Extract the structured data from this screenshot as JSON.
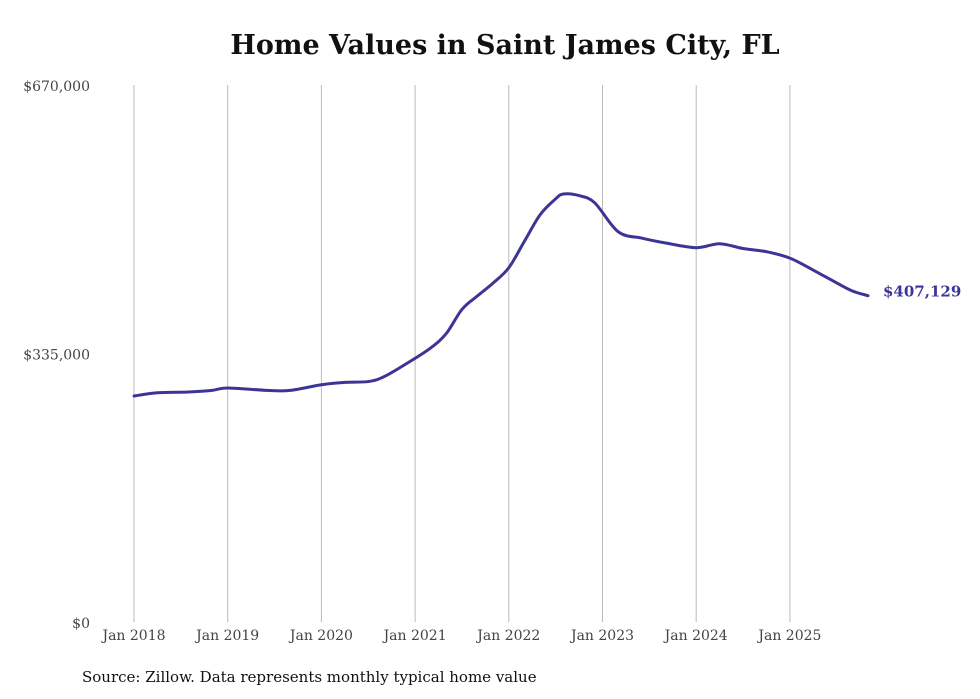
{
  "chart_data": {
    "type": "line",
    "title": "Home Values in Saint James City, FL",
    "source": "Source: Zillow. Data represents monthly typical home value",
    "xlabel": "",
    "ylabel": "",
    "ylim": [
      0,
      670000
    ],
    "y_ticks": [
      0,
      335000,
      670000
    ],
    "y_tick_labels": [
      "$0",
      "$335,000",
      "$670,000"
    ],
    "x_ticks": [
      2018,
      2019,
      2020,
      2021,
      2022,
      2023,
      2024,
      2025
    ],
    "x_tick_labels": [
      "Jan 2018",
      "Jan 2019",
      "Jan 2020",
      "Jan 2021",
      "Jan 2022",
      "Jan 2023",
      "Jan 2024",
      "Jan 2025"
    ],
    "grid": "vertical",
    "line_color": "#3d3595",
    "end_label": "$407,129",
    "series": [
      {
        "name": "Typical home value",
        "x": [
          "2018-01",
          "2018-04",
          "2018-08",
          "2018-11",
          "2019-01",
          "2019-06",
          "2019-09",
          "2020-01",
          "2020-04",
          "2020-07",
          "2020-09",
          "2020-12",
          "2021-03",
          "2021-05",
          "2021-07",
          "2021-09",
          "2021-11",
          "2022-01",
          "2022-03",
          "2022-05",
          "2022-07",
          "2022-08",
          "2022-10",
          "2022-12",
          "2023-03",
          "2023-06",
          "2023-09",
          "2024-01",
          "2024-04",
          "2024-07",
          "2024-10",
          "2025-01",
          "2025-04",
          "2025-07",
          "2025-09",
          "2025-11"
        ],
        "values": [
          282000,
          286000,
          287000,
          289000,
          292000,
          289000,
          289000,
          296000,
          299000,
          300000,
          306000,
          323000,
          342000,
          360000,
          390000,
          407000,
          423000,
          442000,
          475000,
          508000,
          528000,
          534000,
          532000,
          523000,
          487000,
          479000,
          473000,
          467000,
          472000,
          466000,
          462000,
          454000,
          439000,
          423000,
          413000,
          407129
        ]
      }
    ]
  }
}
